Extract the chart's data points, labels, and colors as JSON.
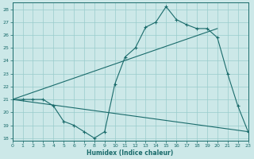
{
  "xlabel": "Humidex (Indice chaleur)",
  "bg_color": "#cce8e8",
  "grid_color": "#99cccc",
  "line_color": "#1a6b6b",
  "xlim": [
    0,
    23
  ],
  "ylim": [
    17.8,
    28.5
  ],
  "yticks": [
    18,
    19,
    20,
    21,
    22,
    23,
    24,
    25,
    26,
    27,
    28
  ],
  "xticks": [
    0,
    1,
    2,
    3,
    4,
    5,
    6,
    7,
    8,
    9,
    10,
    11,
    12,
    13,
    14,
    15,
    16,
    17,
    18,
    19,
    20,
    21,
    22,
    23
  ],
  "curve1_x": [
    0,
    1,
    2,
    3,
    4,
    5,
    6,
    7,
    8,
    9,
    10,
    11,
    12,
    13,
    14,
    15,
    16,
    17,
    18,
    19,
    20,
    21,
    22,
    23
  ],
  "curve1_y": [
    21.0,
    21.0,
    21.0,
    21.0,
    20.5,
    19.3,
    19.0,
    18.5,
    18.0,
    18.5,
    22.2,
    24.3,
    25.0,
    26.6,
    27.0,
    28.2,
    27.2,
    26.8,
    26.5,
    26.5,
    25.8,
    23.0,
    20.5,
    18.5
  ],
  "curve2_x": [
    0,
    20
  ],
  "curve2_y": [
    21.0,
    26.5
  ],
  "curve3_x": [
    0,
    23
  ],
  "curve3_y": [
    21.0,
    18.5
  ],
  "figsize": [
    3.2,
    2.0
  ],
  "dpi": 100
}
